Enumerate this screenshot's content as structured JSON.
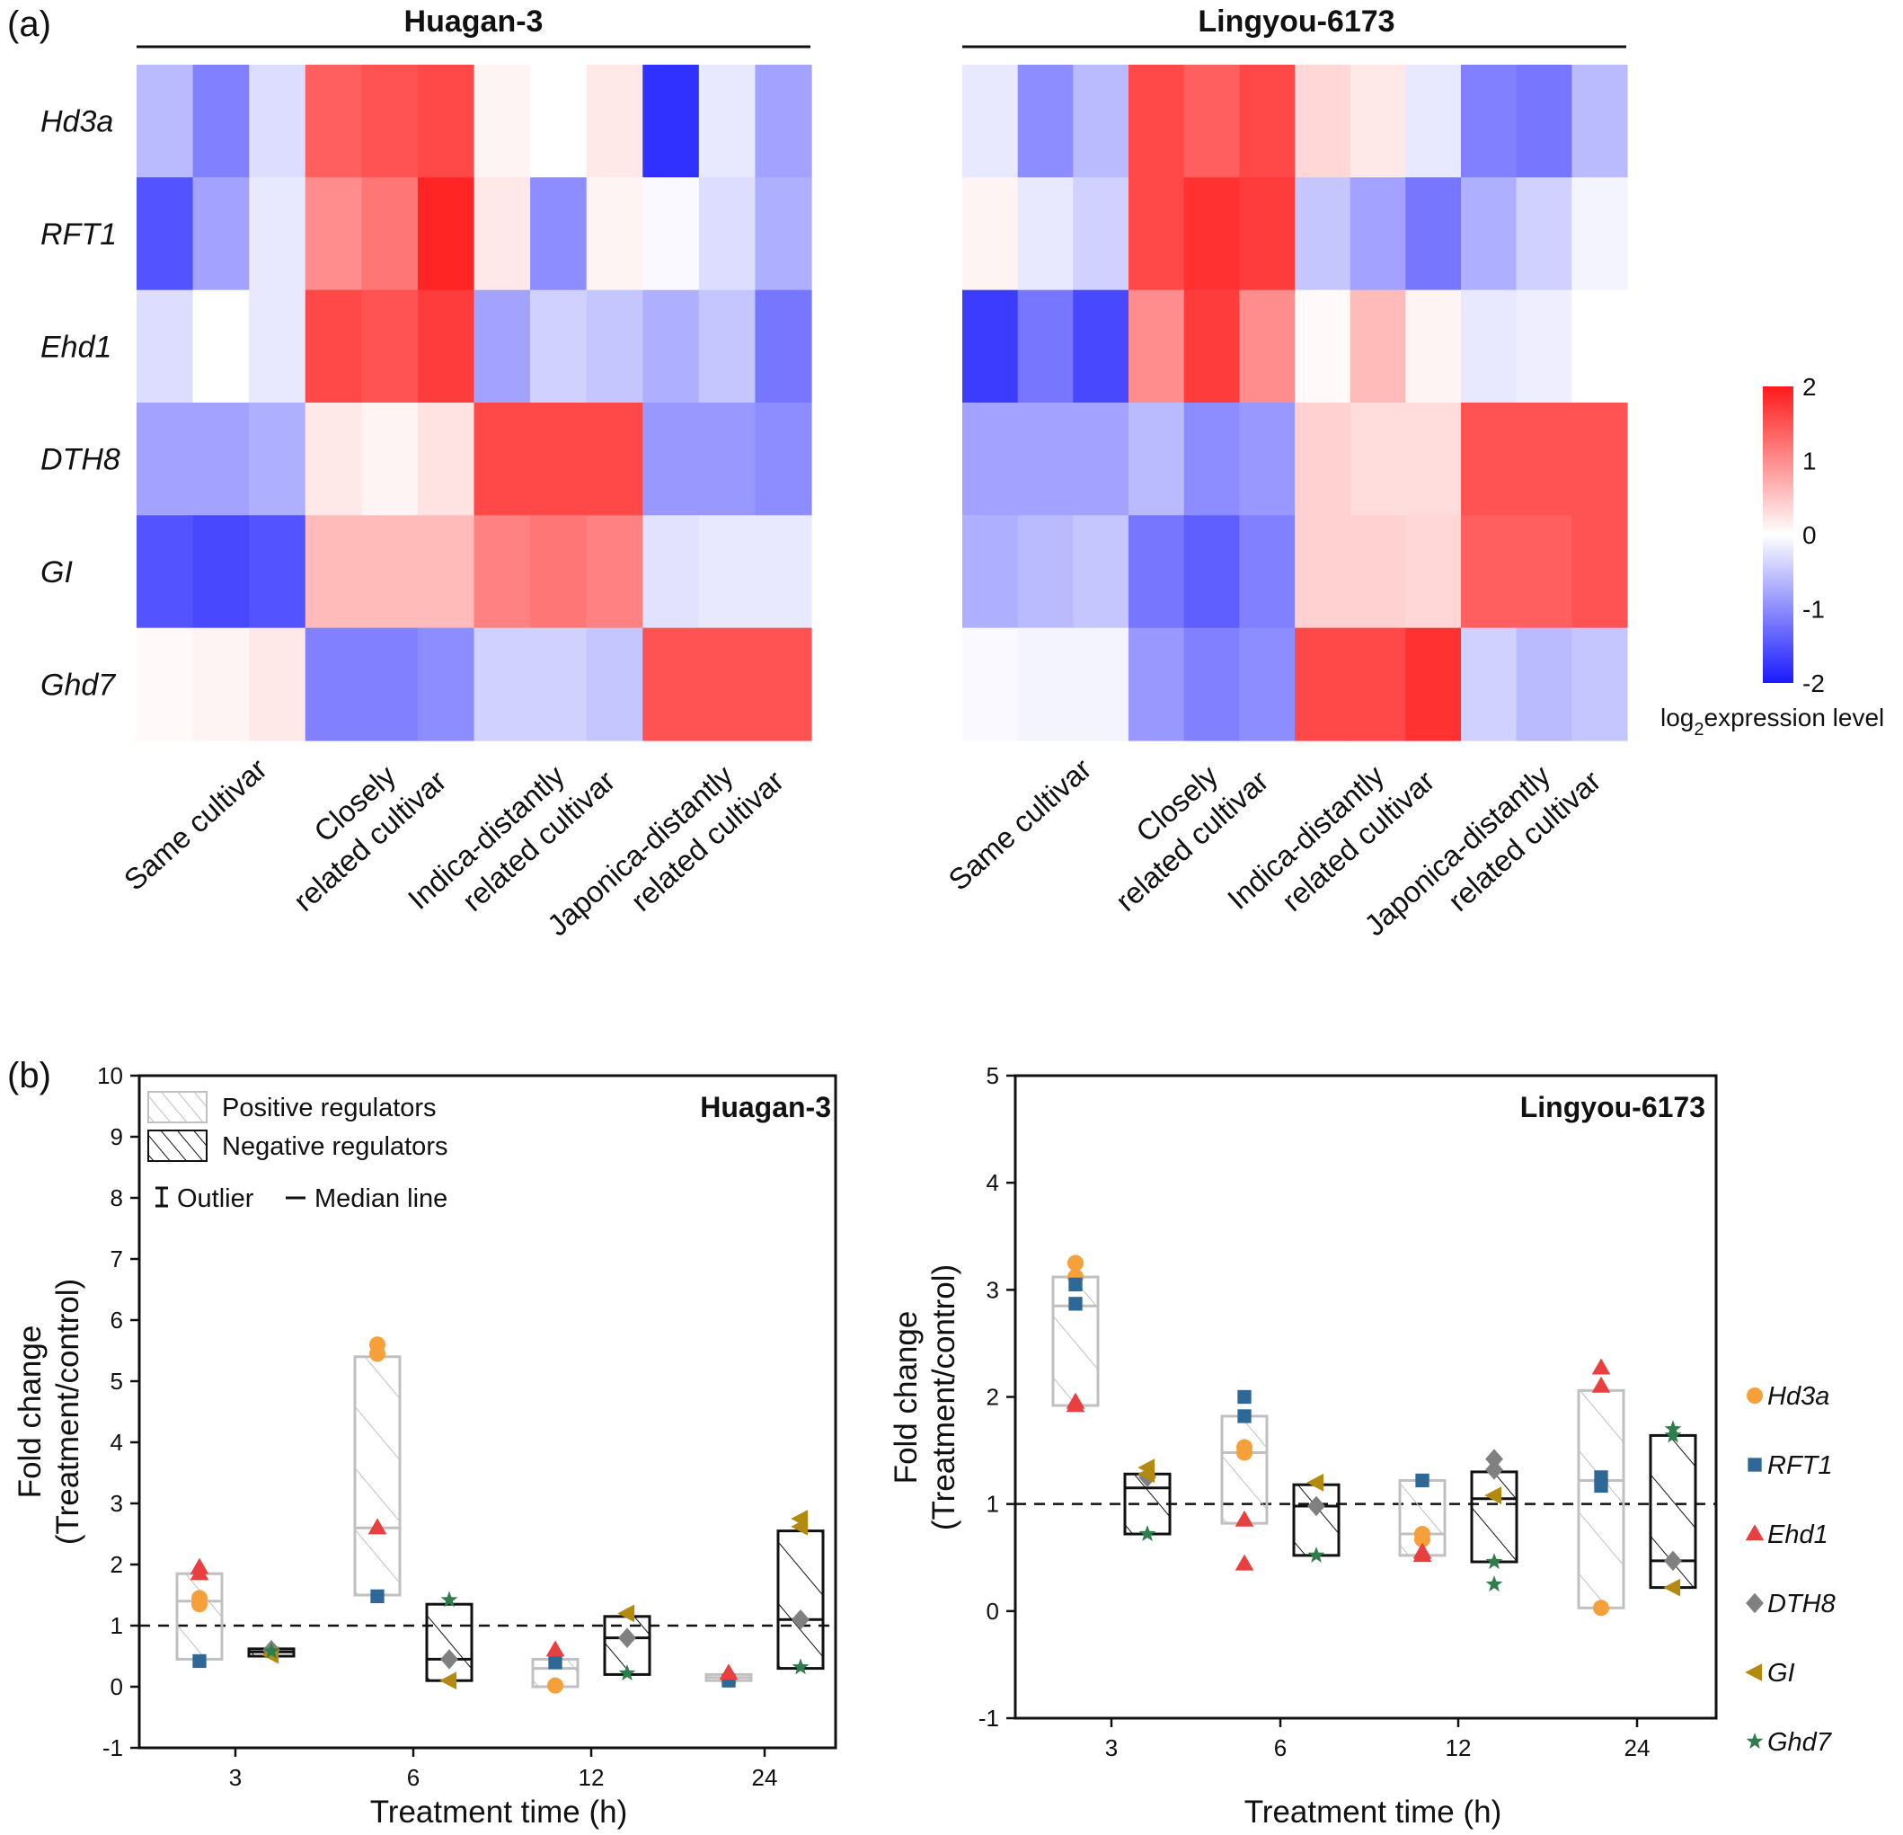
{
  "figure": {
    "panel_a_label": "(a)",
    "panel_b_label": "(b)"
  },
  "chart_data": [
    {
      "type": "heatmap",
      "title": "Huagan-3",
      "rows": [
        "Hd3a",
        "RFT1",
        "Ehd1",
        "DTH8",
        "GI",
        "Ghd7"
      ],
      "column_groups": [
        "Same cultivar",
        "Closely related cultivar",
        "Indica-distantly related cultivar",
        "Japonica-distantly related cultivar"
      ],
      "column_group_lines": [
        [
          "Same cultivar"
        ],
        [
          "Closely",
          "related cultivar"
        ],
        [
          "Indica-distantly",
          "related cultivar"
        ],
        [
          "Japonica-distantly",
          "related cultivar"
        ]
      ],
      "values": [
        [
          -0.6,
          -1.1,
          -0.3,
          1.4,
          1.5,
          1.6,
          0.1,
          0.0,
          0.2,
          -1.8,
          -0.2,
          -0.8
        ],
        [
          -1.5,
          -0.8,
          -0.2,
          1.0,
          1.2,
          1.9,
          0.2,
          -1.0,
          0.1,
          -0.05,
          -0.3,
          -0.7
        ],
        [
          -0.3,
          0.0,
          -0.2,
          1.6,
          1.5,
          1.7,
          -0.8,
          -0.4,
          -0.5,
          -0.7,
          -0.5,
          -1.2
        ],
        [
          -0.8,
          -0.8,
          -0.7,
          0.2,
          0.1,
          0.25,
          1.6,
          1.6,
          1.6,
          -0.9,
          -0.9,
          -1.0
        ],
        [
          -1.5,
          -1.6,
          -1.5,
          0.6,
          0.6,
          0.6,
          1.1,
          1.2,
          1.1,
          -0.25,
          -0.2,
          -0.2
        ],
        [
          0.05,
          0.1,
          0.2,
          -1.1,
          -1.1,
          -1.0,
          -0.4,
          -0.4,
          -0.5,
          1.5,
          1.5,
          1.5
        ]
      ],
      "colorbar": {
        "min": -2,
        "max": 2,
        "ticks": [
          2,
          1,
          0,
          -1,
          -2
        ],
        "label": "log2expression level"
      }
    },
    {
      "type": "heatmap",
      "title": "Lingyou-6173",
      "rows": [
        "Hd3a",
        "RFT1",
        "Ehd1",
        "DTH8",
        "GI",
        "Ghd7"
      ],
      "column_groups": [
        "Same cultivar",
        "Closely related cultivar",
        "Indica-distantly related cultivar",
        "Japonica-distantly related cultivar"
      ],
      "column_group_lines": [
        [
          "Same cultivar"
        ],
        [
          "Closely",
          "related cultivar"
        ],
        [
          "Indica-distantly",
          "related cultivar"
        ],
        [
          "Japonica-distantly",
          "related cultivar"
        ]
      ],
      "values": [
        [
          -0.2,
          -1.0,
          -0.6,
          1.6,
          1.4,
          1.6,
          0.35,
          0.2,
          -0.2,
          -1.1,
          -1.2,
          -0.6
        ],
        [
          0.1,
          -0.2,
          -0.4,
          1.6,
          1.8,
          1.7,
          -0.5,
          -0.8,
          -1.2,
          -0.7,
          -0.4,
          -0.1
        ],
        [
          -1.7,
          -1.2,
          -1.6,
          1.0,
          1.7,
          1.0,
          0.05,
          0.6,
          0.1,
          -0.2,
          -0.15,
          0.0
        ],
        [
          -0.8,
          -0.8,
          -0.8,
          -0.6,
          -1.0,
          -0.9,
          0.4,
          0.3,
          0.3,
          1.5,
          1.5,
          1.5
        ],
        [
          -0.7,
          -0.6,
          -0.5,
          -1.2,
          -1.4,
          -1.1,
          0.4,
          0.4,
          0.35,
          1.4,
          1.4,
          1.5
        ],
        [
          -0.05,
          -0.1,
          -0.1,
          -0.9,
          -1.1,
          -1.0,
          1.6,
          1.6,
          1.8,
          -0.4,
          -0.6,
          -0.5
        ]
      ]
    },
    {
      "type": "scatter",
      "subtype": "box-overlay",
      "title": "Huagan-3",
      "xlabel": "Treatment time (h)",
      "ylabel_lines": [
        "Fold change",
        "(Treatment/control)"
      ],
      "categories": [
        "3",
        "6",
        "12",
        "24"
      ],
      "ylim": [
        -1,
        10
      ],
      "yticks": [
        -1,
        0,
        1,
        2,
        3,
        4,
        5,
        6,
        7,
        8,
        9,
        10
      ],
      "reference_line": 1,
      "boxes": [
        {
          "category": "3",
          "group": "Positive regulators",
          "low": 0.45,
          "high": 1.85,
          "median": 1.4
        },
        {
          "category": "3",
          "group": "Negative regulators",
          "low": 0.5,
          "high": 0.62,
          "median": 0.57
        },
        {
          "category": "6",
          "group": "Positive regulators",
          "low": 1.5,
          "high": 5.4,
          "median": 2.6
        },
        {
          "category": "6",
          "group": "Negative regulators",
          "low": 0.1,
          "high": 1.35,
          "median": 0.45
        },
        {
          "category": "12",
          "group": "Positive regulators",
          "low": 0.0,
          "high": 0.45,
          "median": 0.3
        },
        {
          "category": "12",
          "group": "Negative regulators",
          "low": 0.2,
          "high": 1.15,
          "median": 0.8
        },
        {
          "category": "24",
          "group": "Positive regulators",
          "low": 0.1,
          "high": 0.2,
          "median": 0.15
        },
        {
          "category": "24",
          "group": "Negative regulators",
          "low": 0.3,
          "high": 2.55,
          "median": 1.1
        }
      ],
      "series": [
        {
          "name": "Hd3a",
          "color": "#F5A03A",
          "marker": "circle",
          "points": [
            [
              "3",
              1.35
            ],
            [
              "3",
              1.45
            ],
            [
              "6",
              5.45
            ],
            [
              "6",
              5.6
            ],
            [
              "12",
              0.02
            ],
            [
              "24",
              0.12
            ]
          ]
        },
        {
          "name": "RFT1",
          "color": "#2E6896",
          "marker": "square",
          "points": [
            [
              "3",
              0.42
            ],
            [
              "6",
              1.48
            ],
            [
              "12",
              0.4
            ],
            [
              "24",
              0.1
            ]
          ]
        },
        {
          "name": "Ehd1",
          "color": "#E84040",
          "marker": "triangle-up",
          "points": [
            [
              "3",
              1.95
            ],
            [
              "3",
              1.85
            ],
            [
              "6",
              2.6
            ],
            [
              "12",
              0.6
            ],
            [
              "24",
              0.22
            ]
          ]
        },
        {
          "name": "DTH8",
          "color": "#808080",
          "marker": "diamond",
          "points": [
            [
              "3",
              0.6
            ],
            [
              "6",
              0.45
            ],
            [
              "12",
              0.8
            ],
            [
              "24",
              1.1
            ]
          ]
        },
        {
          "name": "GI",
          "color": "#B38A10",
          "marker": "triangle-left",
          "points": [
            [
              "3",
              0.52
            ],
            [
              "6",
              0.1
            ],
            [
              "12",
              1.2
            ],
            [
              "24",
              2.75
            ],
            [
              "24",
              2.62
            ]
          ]
        },
        {
          "name": "Ghd7",
          "color": "#2E7D4A",
          "marker": "star",
          "points": [
            [
              "3",
              0.58
            ],
            [
              "6",
              1.42
            ],
            [
              "12",
              0.22
            ],
            [
              "24",
              0.32
            ]
          ]
        }
      ]
    },
    {
      "type": "scatter",
      "subtype": "box-overlay",
      "title": "Lingyou-6173",
      "xlabel": "Treatment time (h)",
      "ylabel_lines": [
        "Fold change",
        "(Treatment/control)"
      ],
      "categories": [
        "3",
        "6",
        "12",
        "24"
      ],
      "ylim": [
        -1,
        5
      ],
      "yticks": [
        -1,
        0,
        1,
        2,
        3,
        4,
        5
      ],
      "reference_line": 1,
      "boxes": [
        {
          "category": "3",
          "group": "Positive regulators",
          "low": 1.92,
          "high": 3.12,
          "median": 2.85
        },
        {
          "category": "3",
          "group": "Negative regulators",
          "low": 0.72,
          "high": 1.28,
          "median": 1.15
        },
        {
          "category": "6",
          "group": "Positive regulators",
          "low": 0.82,
          "high": 1.82,
          "median": 1.48
        },
        {
          "category": "6",
          "group": "Negative regulators",
          "low": 0.52,
          "high": 1.18,
          "median": 0.98
        },
        {
          "category": "12",
          "group": "Positive regulators",
          "low": 0.52,
          "high": 1.22,
          "median": 0.72
        },
        {
          "category": "12",
          "group": "Negative regulators",
          "low": 0.46,
          "high": 1.3,
          "median": 1.05
        },
        {
          "category": "24",
          "group": "Positive regulators",
          "low": 0.03,
          "high": 2.06,
          "median": 1.22
        },
        {
          "category": "24",
          "group": "Negative regulators",
          "low": 0.22,
          "high": 1.64,
          "median": 0.47
        }
      ],
      "series": [
        {
          "name": "Hd3a",
          "color": "#F5A03A",
          "marker": "circle",
          "points": [
            [
              "3",
              3.25
            ],
            [
              "3",
              3.12
            ],
            [
              "6",
              1.48
            ],
            [
              "6",
              1.53
            ],
            [
              "12",
              0.72
            ],
            [
              "12",
              0.67
            ],
            [
              "24",
              0.03
            ]
          ]
        },
        {
          "name": "RFT1",
          "color": "#2E6896",
          "marker": "square",
          "points": [
            [
              "3",
              3.05
            ],
            [
              "3",
              2.87
            ],
            [
              "6",
              2.0
            ],
            [
              "6",
              1.82
            ],
            [
              "12",
              1.22
            ],
            [
              "24",
              1.25
            ],
            [
              "24",
              1.17
            ]
          ]
        },
        {
          "name": "Ehd1",
          "color": "#E84040",
          "marker": "triangle-up",
          "points": [
            [
              "3",
              1.92
            ],
            [
              "3",
              1.95
            ],
            [
              "6",
              0.85
            ],
            [
              "6",
              0.44
            ],
            [
              "12",
              0.52
            ],
            [
              "12",
              0.55
            ],
            [
              "24",
              2.27
            ],
            [
              "24",
              2.1
            ]
          ]
        },
        {
          "name": "DTH8",
          "color": "#808080",
          "marker": "diamond",
          "points": [
            [
              "3",
              1.25
            ],
            [
              "6",
              0.98
            ],
            [
              "12",
              1.42
            ],
            [
              "12",
              1.32
            ],
            [
              "24",
              0.47
            ]
          ]
        },
        {
          "name": "GI",
          "color": "#B38A10",
          "marker": "triangle-left",
          "points": [
            [
              "3",
              1.34
            ],
            [
              "3",
              1.28
            ],
            [
              "6",
              1.2
            ],
            [
              "12",
              1.08
            ],
            [
              "24",
              0.22
            ]
          ]
        },
        {
          "name": "Ghd7",
          "color": "#2E7D4A",
          "marker": "star",
          "points": [
            [
              "3",
              0.72
            ],
            [
              "6",
              0.52
            ],
            [
              "12",
              0.46
            ],
            [
              "12",
              0.25
            ],
            [
              "24",
              1.7
            ],
            [
              "24",
              1.64
            ]
          ]
        }
      ]
    }
  ],
  "legend_box": {
    "positive": "Positive   regulators",
    "negative": "Negative regulators",
    "outlier": "Outlier",
    "median": "Median line"
  },
  "colors": {
    "positive_box": "#C0C0C0",
    "negative_box": "#111111",
    "heat_low": "#1A1AFF",
    "heat_mid": "#FFFFFF",
    "heat_high": "#FF1A1A"
  }
}
